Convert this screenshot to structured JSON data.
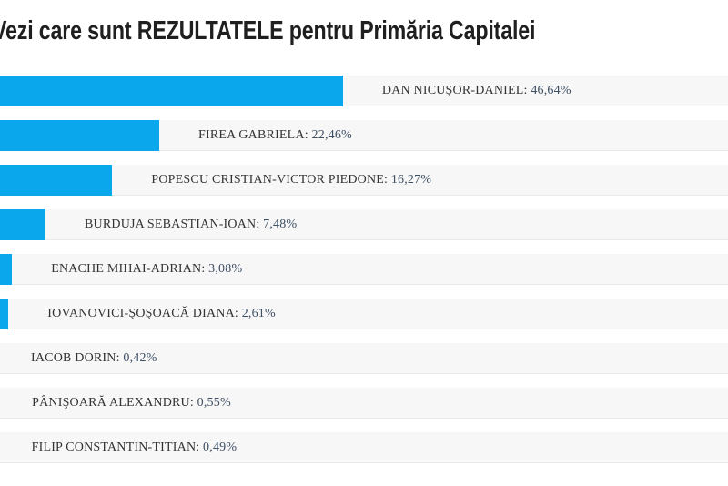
{
  "page": {
    "title": "Vezi care sunt REZULTATELE pentru Primăria Capitalei"
  },
  "chart_data": {
    "type": "bar",
    "orientation": "horizontal",
    "title": "Vezi care sunt REZULTATELE pentru Primăria Capitalei",
    "xlabel": "",
    "ylabel": "",
    "xlim": [
      0,
      100
    ],
    "grid": false,
    "legend": false,
    "unit": "%",
    "decimal_separator": ",",
    "colors": {
      "bar": "#0ba7ec",
      "track": "#f7f7f8",
      "track_border": "#eaeaeb",
      "name_text": "#333333",
      "value_text": "#3d4f63",
      "title_text": "#1f1f1f"
    },
    "categories": [
      "DAN NICUŞOR-DANIEL",
      "FIREA GABRIELA",
      "POPESCU CRISTIAN-VICTOR PIEDONE",
      "BURDUJA SEBASTIAN-IOAN",
      "ENACHE MIHAI-ADRIAN",
      "IOVANOVICI-ŞOŞOACĂ DIANA",
      "IACOB DORIN",
      "PÂNIŞOARĂ ALEXANDRU",
      "FILIP CONSTANTIN-TITIAN"
    ],
    "values": [
      46.64,
      22.46,
      16.27,
      7.48,
      3.08,
      2.61,
      0.42,
      0.55,
      0.49
    ],
    "value_labels": [
      "46,64%",
      "22,46%",
      "16,27%",
      "7,48%",
      "3,08%",
      "2,61%",
      "0,42%",
      "0,55%",
      "0,49%"
    ],
    "label_separator": ": "
  }
}
